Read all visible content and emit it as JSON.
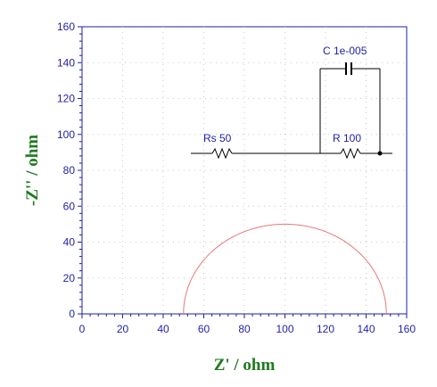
{
  "chart_data": {
    "type": "line",
    "title": "",
    "xlabel": "Z' / ohm",
    "ylabel": "-Z'' / ohm",
    "xlim": [
      0,
      160
    ],
    "ylim": [
      0,
      160
    ],
    "xticks": [
      0,
      20,
      40,
      60,
      80,
      100,
      120,
      140,
      160
    ],
    "yticks": [
      0,
      20,
      40,
      60,
      80,
      100,
      120,
      140,
      160
    ],
    "grid": "dotted",
    "series": [
      {
        "color": "#e87878",
        "shape": "semicircle",
        "center_x": 100,
        "radius": 50,
        "x_range": [
          50,
          150
        ],
        "y_max": 50
      }
    ],
    "circuit": {
      "rs_label": "Rs  50",
      "r_label": "R  100",
      "c_label": "C  1e-005"
    }
  },
  "colors": {
    "axis": "#1f1fa8",
    "axis_title": "#1f7a1f",
    "curve": "#e87878",
    "circuit": "#000000"
  }
}
